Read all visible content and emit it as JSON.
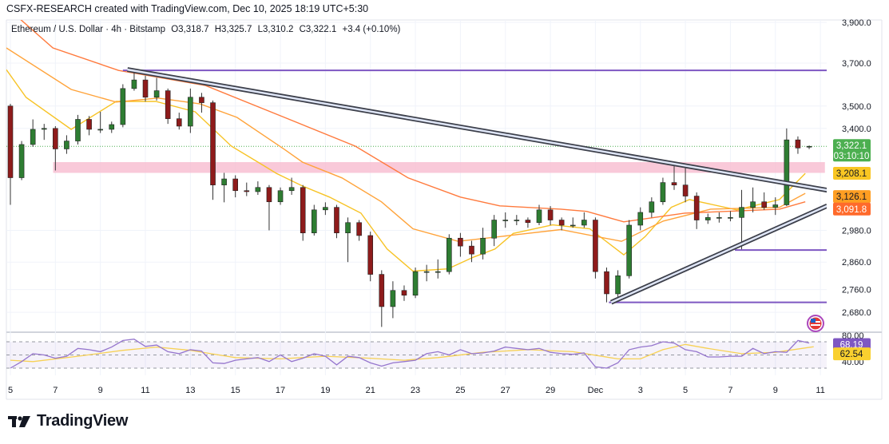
{
  "header": {
    "credit": "CSFX-RESEARCH created with TradingView.com, Dec 10, 2025 18:19 UTC+5:30"
  },
  "legend": {
    "symbol": "Ethereum / U.S. Dollar · 4h · Bitstamp",
    "open": "O3,318.7",
    "high": "H3,325.7",
    "low": "L3,310.2",
    "close": "C3,322.1",
    "change": "+3.4 (+0.10%)"
  },
  "brand": {
    "name": "TradingView",
    "icon": "tradingview-logo-icon"
  },
  "colors": {
    "up": "#2e7d32",
    "down": "#8e1b1b",
    "wick": "#333333",
    "ma_fast": "#f7c325",
    "ma_mid": "#ffa33a",
    "ma_slow": "#ff7a3d",
    "level": "#7e57c2",
    "zone": "#f8bbd0",
    "trend": "#3c3f4a",
    "trend_fill": "#dfe6f7",
    "rsi": "#9575cd",
    "rsi_signal": "#f7d154",
    "price_tag": "#4caf50"
  },
  "chart_data": {
    "type": "candlestick",
    "title": "Ethereum / U.S. Dollar · 4h · Bitstamp",
    "scale": "log",
    "ylim": [
      2600,
      3950
    ],
    "x_unit": "day (Nov = day, Dec d = 30 + d)",
    "candle_start_day": 5.0,
    "candle_interval_days": 0.5,
    "candles_ohlc": [
      [
        3500,
        3510,
        3080,
        3190
      ],
      [
        3190,
        3345,
        3180,
        3330
      ],
      [
        3330,
        3440,
        3320,
        3396
      ],
      [
        3396,
        3420,
        3350,
        3400
      ],
      [
        3400,
        3410,
        3220,
        3311
      ],
      [
        3311,
        3370,
        3290,
        3345
      ],
      [
        3345,
        3460,
        3330,
        3440
      ],
      [
        3440,
        3455,
        3370,
        3396
      ],
      [
        3396,
        3474,
        3380,
        3396
      ],
      [
        3396,
        3430,
        3380,
        3417
      ],
      [
        3417,
        3600,
        3405,
        3580
      ],
      [
        3580,
        3665,
        3570,
        3620
      ],
      [
        3620,
        3640,
        3520,
        3540
      ],
      [
        3540,
        3630,
        3525,
        3570
      ],
      [
        3570,
        3580,
        3420,
        3443
      ],
      [
        3443,
        3470,
        3395,
        3410
      ],
      [
        3410,
        3580,
        3380,
        3540
      ],
      [
        3540,
        3560,
        3470,
        3515
      ],
      [
        3515,
        3525,
        3100,
        3160
      ],
      [
        3160,
        3210,
        3090,
        3185
      ],
      [
        3185,
        3200,
        3110,
        3137
      ],
      [
        3137,
        3170,
        3115,
        3133
      ],
      [
        3133,
        3175,
        3120,
        3150
      ],
      [
        3150,
        3160,
        2980,
        3092
      ],
      [
        3092,
        3150,
        3080,
        3137
      ],
      [
        3137,
        3190,
        3120,
        3150
      ],
      [
        3150,
        3160,
        2940,
        2970
      ],
      [
        2970,
        3080,
        2960,
        3060
      ],
      [
        3060,
        3090,
        3040,
        3070
      ],
      [
        3070,
        3080,
        2950,
        2970
      ],
      [
        2970,
        3030,
        2860,
        3010
      ],
      [
        3010,
        3020,
        2940,
        2960
      ],
      [
        2960,
        2975,
        2790,
        2815
      ],
      [
        2815,
        2830,
        2630,
        2700
      ],
      [
        2700,
        2790,
        2660,
        2757
      ],
      [
        2757,
        2775,
        2720,
        2740
      ],
      [
        2740,
        2840,
        2730,
        2825
      ],
      [
        2825,
        2850,
        2790,
        2825
      ],
      [
        2825,
        2870,
        2800,
        2825
      ],
      [
        2825,
        2965,
        2815,
        2950
      ],
      [
        2950,
        2970,
        2880,
        2920
      ],
      [
        2920,
        2940,
        2860,
        2890
      ],
      [
        2890,
        2990,
        2870,
        2950
      ],
      [
        2950,
        3040,
        2920,
        3020
      ],
      [
        3020,
        3050,
        2990,
        3020
      ],
      [
        3020,
        3040,
        3000,
        3020
      ],
      [
        3020,
        3030,
        2990,
        3010
      ],
      [
        3010,
        3080,
        3000,
        3060
      ],
      [
        3060,
        3075,
        3000,
        3020
      ],
      [
        3020,
        3030,
        2980,
        3000
      ],
      [
        3000,
        3030,
        2990,
        3000
      ],
      [
        3000,
        3050,
        2990,
        3020
      ],
      [
        3020,
        3030,
        2800,
        2825
      ],
      [
        2825,
        2840,
        2715,
        2745
      ],
      [
        2745,
        2830,
        2730,
        2810
      ],
      [
        2810,
        3020,
        2800,
        3000
      ],
      [
        3000,
        3070,
        2980,
        3050
      ],
      [
        3050,
        3110,
        3030,
        3092
      ],
      [
        3092,
        3190,
        3080,
        3170
      ],
      [
        3170,
        3250,
        3140,
        3160
      ],
      [
        3160,
        3230,
        3090,
        3115
      ],
      [
        3115,
        3130,
        2985,
        3020
      ],
      [
        3020,
        3045,
        3005,
        3030
      ],
      [
        3030,
        3050,
        3010,
        3030
      ],
      [
        3030,
        3055,
        3015,
        3030
      ],
      [
        3030,
        3140,
        2905,
        3070
      ],
      [
        3070,
        3150,
        3050,
        3092
      ],
      [
        3092,
        3130,
        3060,
        3070
      ],
      [
        3070,
        3110,
        3040,
        3080
      ],
      [
        3080,
        3400,
        3075,
        3350
      ],
      [
        3350,
        3365,
        3290,
        3315
      ],
      [
        3318.7,
        3325.7,
        3310.2,
        3322.1
      ]
    ],
    "moving_averages": [
      {
        "name": "ma-fast",
        "color_key": "ma_fast",
        "last": "3,208.1",
        "points": [
          [
            4.82,
            3669
          ],
          [
            5.7,
            3539
          ],
          [
            7.7,
            3396
          ],
          [
            9.7,
            3521
          ],
          [
            11.46,
            3521
          ],
          [
            13.21,
            3474
          ],
          [
            14.82,
            3323
          ],
          [
            16.23,
            3242
          ],
          [
            16.82,
            3208
          ],
          [
            17.98,
            3156
          ],
          [
            19.18,
            3111
          ],
          [
            20.58,
            3047
          ],
          [
            21.74,
            2909
          ],
          [
            22.89,
            2827
          ],
          [
            24.44,
            2835
          ],
          [
            25.6,
            2879
          ],
          [
            26.54,
            2909
          ],
          [
            27.35,
            2968
          ],
          [
            29.1,
            3001
          ],
          [
            30.75,
            2986
          ],
          [
            32.26,
            2887
          ],
          [
            33.21,
            2956
          ],
          [
            34.37,
            3070
          ],
          [
            35.18,
            3101
          ],
          [
            37.28,
            3060
          ],
          [
            39.18,
            3101
          ],
          [
            40.33,
            3208
          ]
        ]
      },
      {
        "name": "ma-mid",
        "color_key": "ma_mid",
        "last": "3,126.1",
        "points": [
          [
            4.82,
            3773
          ],
          [
            7.7,
            3576
          ],
          [
            9.7,
            3518
          ],
          [
            11.56,
            3536
          ],
          [
            13.42,
            3510
          ],
          [
            15.07,
            3449
          ],
          [
            17.18,
            3309
          ],
          [
            17.98,
            3255
          ],
          [
            19.74,
            3189
          ],
          [
            21.49,
            3092
          ],
          [
            22.89,
            2986
          ],
          [
            24.9,
            2938
          ],
          [
            26.75,
            2956
          ],
          [
            29.46,
            2983
          ],
          [
            32.16,
            2938
          ],
          [
            34.02,
            3016
          ],
          [
            36.12,
            3063
          ],
          [
            39.18,
            3070
          ],
          [
            40.33,
            3126
          ]
        ]
      },
      {
        "name": "ma-slow",
        "color_key": "ma_slow",
        "last": "3,091.8",
        "points": [
          [
            5.0,
            3960
          ],
          [
            6.89,
            3773
          ],
          [
            9.81,
            3665
          ],
          [
            13.67,
            3594
          ],
          [
            17.18,
            3449
          ],
          [
            20.33,
            3323
          ],
          [
            22.68,
            3189
          ],
          [
            25.0,
            3111
          ],
          [
            26.75,
            3076
          ],
          [
            29.46,
            3063
          ],
          [
            30.61,
            3054
          ],
          [
            32.26,
            3013
          ],
          [
            34.96,
            3047
          ],
          [
            39.18,
            3063
          ],
          [
            40.33,
            3092
          ]
        ]
      }
    ],
    "drawings": {
      "resistance_level": {
        "price": 3665,
        "from_day": 10.0
      },
      "support_levels": [
        {
          "price": 2905,
          "from_day": 37.2
        },
        {
          "price": 2715,
          "from_day": 31.6
        }
      ],
      "supply_zone": {
        "top": 3255,
        "bottom": 3210,
        "from_day": 6.9,
        "to_day": 41.2
      },
      "descending_trendline": {
        "from": [
          10.2,
          3669
        ],
        "to": [
          41.3,
          3139
        ]
      },
      "ascending_trendline": {
        "from": [
          31.7,
          2715
        ],
        "to": [
          41.3,
          3076
        ]
      }
    },
    "y_ticks": [
      {
        "value": 3900,
        "label": "3,900.0"
      },
      {
        "value": 3700,
        "label": "3,700.0"
      },
      {
        "value": 3500,
        "label": "3,500.0"
      },
      {
        "value": 3400,
        "label": "3,400.0"
      },
      {
        "value": 2980,
        "label": "2,980.0"
      },
      {
        "value": 2860,
        "label": "2,860.0"
      },
      {
        "value": 2760,
        "label": "2,760.0"
      },
      {
        "value": 2680,
        "label": "2,680.0"
      }
    ],
    "x_ticks": [
      {
        "day": 5,
        "label": "5"
      },
      {
        "day": 7,
        "label": "7"
      },
      {
        "day": 9,
        "label": "9"
      },
      {
        "day": 11,
        "label": "11"
      },
      {
        "day": 13,
        "label": "13"
      },
      {
        "day": 15,
        "label": "15"
      },
      {
        "day": 17,
        "label": "17"
      },
      {
        "day": 19,
        "label": "19"
      },
      {
        "day": 21,
        "label": "21"
      },
      {
        "day": 23,
        "label": "23"
      },
      {
        "day": 25,
        "label": "25"
      },
      {
        "day": 27,
        "label": "27"
      },
      {
        "day": 29,
        "label": "29"
      },
      {
        "day": 31,
        "label": "Dec"
      },
      {
        "day": 33,
        "label": "3"
      },
      {
        "day": 35,
        "label": "5"
      },
      {
        "day": 37,
        "label": "7"
      },
      {
        "day": 39,
        "label": "9"
      },
      {
        "day": 41,
        "label": "11"
      }
    ],
    "price_tags": {
      "last": {
        "price": 3322.1,
        "label": "3,322.1",
        "countdown": "03:10:10"
      },
      "ma_fast": {
        "price": 3208.1,
        "label": "3,208.1"
      },
      "ma_mid": {
        "price": 3126.1,
        "label": "3,126.1"
      },
      "ma_slow": {
        "price": 3091.8,
        "label": "3,091.8"
      }
    },
    "rsi": {
      "ylim": [
        25,
        80
      ],
      "bands": [
        70,
        50,
        30
      ],
      "axis_labels": [
        {
          "value": 80,
          "label": "80.00"
        },
        {
          "value": 40,
          "label": "40.00"
        }
      ],
      "value_label": "68.19",
      "signal_label": "62.54",
      "rsi_points": [
        [
          5,
          30
        ],
        [
          5.5,
          40
        ],
        [
          6,
          52
        ],
        [
          6.5,
          50
        ],
        [
          7,
          45
        ],
        [
          7.5,
          48
        ],
        [
          8,
          60
        ],
        [
          8.5,
          58
        ],
        [
          9,
          55
        ],
        [
          9.5,
          62
        ],
        [
          10,
          72
        ],
        [
          10.5,
          74
        ],
        [
          11,
          63
        ],
        [
          11.5,
          65
        ],
        [
          12,
          55
        ],
        [
          12.5,
          52
        ],
        [
          13,
          58
        ],
        [
          13.5,
          56
        ],
        [
          14,
          38
        ],
        [
          14.5,
          37
        ],
        [
          15,
          42
        ],
        [
          15.5,
          44
        ],
        [
          16,
          46
        ],
        [
          16.5,
          40
        ],
        [
          17,
          50
        ],
        [
          17.5,
          40
        ],
        [
          18,
          45
        ],
        [
          18.5,
          52
        ],
        [
          19,
          48
        ],
        [
          19.5,
          35
        ],
        [
          20,
          48
        ],
        [
          20.5,
          46
        ],
        [
          21,
          38
        ],
        [
          21.5,
          33
        ],
        [
          22,
          38
        ],
        [
          22.5,
          40
        ],
        [
          23,
          42
        ],
        [
          23.5,
          52
        ],
        [
          24,
          55
        ],
        [
          24.5,
          50
        ],
        [
          25,
          58
        ],
        [
          25.5,
          52
        ],
        [
          26,
          53
        ],
        [
          26.5,
          56
        ],
        [
          27,
          62
        ],
        [
          27.5,
          60
        ],
        [
          28,
          58
        ],
        [
          28.5,
          60
        ],
        [
          29,
          54
        ],
        [
          29.5,
          52
        ],
        [
          30,
          51
        ],
        [
          30.5,
          53
        ],
        [
          31,
          32
        ],
        [
          31.5,
          30
        ],
        [
          32,
          38
        ],
        [
          32.5,
          58
        ],
        [
          33,
          62
        ],
        [
          33.5,
          64
        ],
        [
          34,
          70
        ],
        [
          34.5,
          68
        ],
        [
          35,
          58
        ],
        [
          35.5,
          55
        ],
        [
          36,
          47
        ],
        [
          36.5,
          47
        ],
        [
          37,
          48
        ],
        [
          37.5,
          48
        ],
        [
          38,
          60
        ],
        [
          38.5,
          52
        ],
        [
          39,
          55
        ],
        [
          39.5,
          54
        ],
        [
          40,
          72
        ],
        [
          40.5,
          68.19
        ]
      ],
      "signal_points": [
        [
          5,
          42
        ],
        [
          6,
          40
        ],
        [
          8,
          48
        ],
        [
          10,
          57
        ],
        [
          11.5,
          62
        ],
        [
          13,
          57
        ],
        [
          15,
          46
        ],
        [
          17,
          44
        ],
        [
          19,
          48
        ],
        [
          21,
          45
        ],
        [
          22.5,
          42
        ],
        [
          24,
          46
        ],
        [
          26,
          54
        ],
        [
          28,
          58
        ],
        [
          30,
          55
        ],
        [
          32,
          44
        ],
        [
          33,
          44
        ],
        [
          34,
          58
        ],
        [
          35,
          66
        ],
        [
          36,
          60
        ],
        [
          37.5,
          52
        ],
        [
          39,
          54
        ],
        [
          40.7,
          62.54
        ]
      ]
    }
  }
}
